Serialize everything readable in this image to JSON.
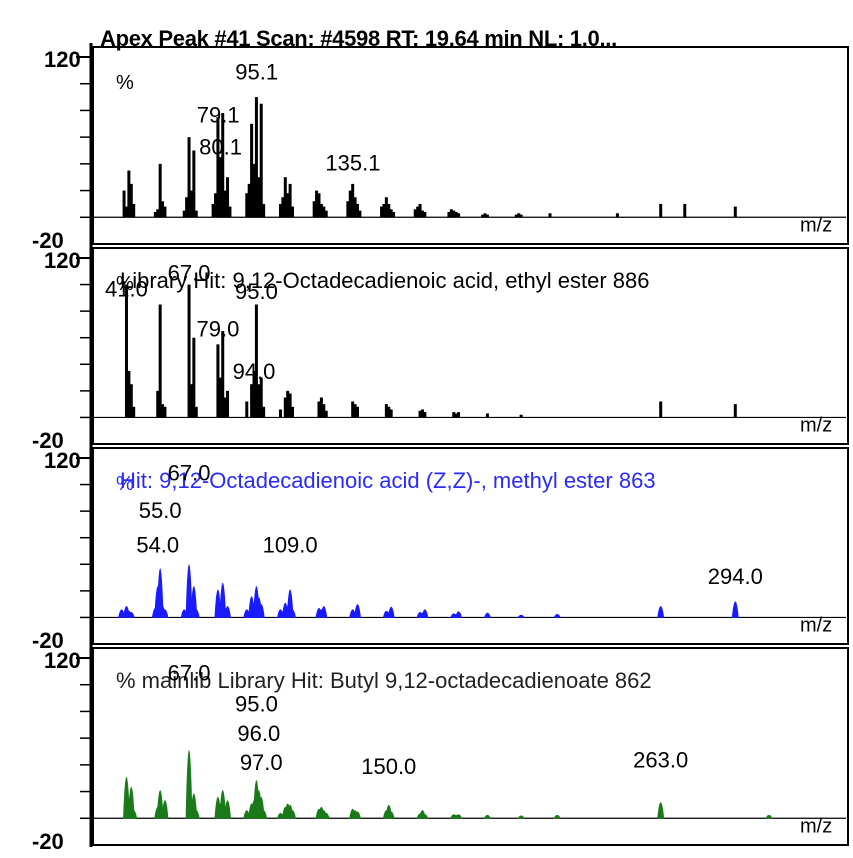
{
  "header": {
    "title": "Apex Peak #41 Scan: #4598   RT: 19.64 min NL: 1.0..."
  },
  "chart_data": [
    {
      "type": "bar",
      "panel_label": "",
      "y_unit_label": "%",
      "xlabel": "m/z",
      "ylim": [
        -20,
        120
      ],
      "y_ticks": [
        "120",
        "-20"
      ],
      "color": "#000000",
      "x": [
        40,
        41,
        42,
        43,
        44,
        53,
        54,
        55,
        56,
        57,
        65,
        66,
        67,
        68,
        69,
        70,
        77,
        78,
        79,
        80,
        81,
        82,
        83,
        84,
        91,
        92,
        93,
        94,
        95,
        96,
        97,
        98,
        105,
        106,
        107,
        108,
        109,
        110,
        119,
        120,
        121,
        122,
        123,
        124,
        133,
        134,
        135,
        136,
        137,
        138,
        147,
        148,
        149,
        150,
        151,
        152,
        161,
        162,
        163,
        164,
        165,
        175,
        176,
        177,
        178,
        179,
        189,
        190,
        191,
        203,
        204,
        205,
        217,
        245,
        263,
        273,
        294
      ],
      "values": [
        20,
        8,
        35,
        25,
        10,
        4,
        6,
        40,
        12,
        8,
        5,
        15,
        60,
        20,
        50,
        5,
        10,
        18,
        75,
        45,
        78,
        20,
        30,
        8,
        18,
        25,
        70,
        40,
        90,
        30,
        85,
        10,
        10,
        15,
        30,
        18,
        25,
        8,
        12,
        20,
        18,
        10,
        8,
        5,
        12,
        20,
        25,
        15,
        10,
        5,
        8,
        10,
        15,
        10,
        6,
        4,
        6,
        8,
        10,
        5,
        4,
        4,
        6,
        5,
        4,
        3,
        2,
        3,
        2,
        2,
        3,
        2,
        3,
        3,
        10,
        10,
        8
      ],
      "peak_labels": [
        {
          "x": 95.1,
          "y": 100,
          "text": "95.1"
        },
        {
          "x": 79.1,
          "y": 68,
          "text": "79.1"
        },
        {
          "x": 80.1,
          "y": 44,
          "text": "80.1"
        },
        {
          "x": 135.1,
          "y": 32,
          "text": "135.1"
        }
      ]
    },
    {
      "type": "bar",
      "panel_label": "Library Hit: 9,12-Octadecadienoic acid, ethyl ester 886",
      "y_unit_label": "%",
      "xlabel": "m/z",
      "ylim": [
        -20,
        120
      ],
      "y_ticks": [
        "120",
        "-20"
      ],
      "color": "#000000",
      "text_color": "#000000",
      "x": [
        41,
        42,
        43,
        44,
        54,
        55,
        56,
        57,
        67,
        68,
        69,
        70,
        79,
        80,
        81,
        82,
        83,
        91,
        93,
        94,
        95,
        96,
        97,
        98,
        105,
        107,
        108,
        109,
        110,
        121,
        122,
        123,
        124,
        135,
        136,
        137,
        149,
        150,
        151,
        163,
        164,
        165,
        177,
        178,
        179,
        191,
        205,
        263,
        294
      ],
      "values": [
        100,
        35,
        25,
        8,
        20,
        85,
        10,
        8,
        100,
        25,
        60,
        8,
        55,
        30,
        65,
        15,
        20,
        12,
        25,
        35,
        85,
        25,
        30,
        8,
        6,
        15,
        20,
        18,
        8,
        12,
        15,
        10,
        5,
        12,
        10,
        8,
        10,
        8,
        6,
        5,
        6,
        4,
        4,
        3,
        4,
        3,
        2,
        12,
        10
      ],
      "peak_labels": [
        {
          "x": 67.0,
          "y": 100,
          "text": "67.0"
        },
        {
          "x": 41.0,
          "y": 88,
          "text": "41.0"
        },
        {
          "x": 95.0,
          "y": 86,
          "text": "95.0"
        },
        {
          "x": 79.0,
          "y": 58,
          "text": "79.0"
        },
        {
          "x": 94.0,
          "y": 26,
          "text": "94.0"
        }
      ]
    },
    {
      "type": "area",
      "panel_label": "Hit: 9,12-Octadecadienoic acid (Z,Z)-, methyl ester 863",
      "y_unit_label": "%",
      "xlabel": "m/z",
      "ylim": [
        -20,
        120
      ],
      "y_ticks": [
        "120",
        "-20"
      ],
      "color": "#1a1aff",
      "text_color": "#2a2aff",
      "x": [
        39,
        41,
        42,
        43,
        53,
        54,
        55,
        56,
        57,
        65,
        67,
        68,
        69,
        70,
        79,
        80,
        81,
        82,
        83,
        91,
        93,
        94,
        95,
        96,
        97,
        105,
        107,
        108,
        109,
        110,
        121,
        122,
        123,
        135,
        136,
        137,
        149,
        150,
        151,
        163,
        164,
        165,
        177,
        178,
        179,
        191,
        205,
        220,
        263,
        294
      ],
      "values": [
        10,
        15,
        8,
        6,
        12,
        45,
        72,
        15,
        10,
        10,
        78,
        25,
        45,
        10,
        40,
        20,
        50,
        12,
        15,
        10,
        30,
        20,
        45,
        28,
        18,
        10,
        20,
        15,
        40,
        10,
        12,
        10,
        15,
        10,
        6,
        18,
        8,
        6,
        14,
        6,
        5,
        10,
        4,
        3,
        7,
        5,
        2,
        3,
        15,
        22
      ],
      "peak_labels": [
        {
          "x": 67.0,
          "y": 100,
          "text": "67.0"
        },
        {
          "x": 55.0,
          "y": 72,
          "text": "55.0"
        },
        {
          "x": 54.0,
          "y": 46,
          "text": "54.0"
        },
        {
          "x": 109.0,
          "y": 46,
          "text": "109.0"
        },
        {
          "x": 294.0,
          "y": 22,
          "text": "294.0"
        }
      ]
    },
    {
      "type": "area",
      "panel_label": "% mainlib Library Hit: Butyl 9,12-octadecadienoate 862",
      "y_unit_label": "",
      "xlabel": "m/z",
      "ylim": [
        -20,
        120
      ],
      "y_ticks": [
        "120",
        "-20"
      ],
      "color": "#1a7a1a",
      "text_color": "#222222",
      "x": [
        41,
        42,
        43,
        44,
        54,
        55,
        56,
        57,
        67,
        68,
        69,
        70,
        79,
        80,
        81,
        82,
        83,
        91,
        93,
        94,
        95,
        96,
        97,
        98,
        105,
        107,
        108,
        109,
        110,
        121,
        122,
        123,
        124,
        135,
        136,
        137,
        149,
        150,
        151,
        163,
        164,
        165,
        177,
        178,
        179,
        191,
        205,
        220,
        263,
        308
      ],
      "values": [
        60,
        20,
        45,
        10,
        15,
        40,
        10,
        25,
        100,
        20,
        35,
        10,
        30,
        20,
        40,
        15,
        25,
        10,
        20,
        25,
        55,
        40,
        30,
        10,
        6,
        15,
        20,
        18,
        10,
        12,
        15,
        10,
        6,
        12,
        10,
        8,
        10,
        18,
        8,
        5,
        10,
        4,
        4,
        3,
        4,
        3,
        2,
        3,
        22,
        3
      ],
      "peak_labels": [
        {
          "x": 67.0,
          "y": 100,
          "text": "67.0"
        },
        {
          "x": 95.0,
          "y": 77,
          "text": "95.0"
        },
        {
          "x": 96.0,
          "y": 55,
          "text": "96.0"
        },
        {
          "x": 97.0,
          "y": 33,
          "text": "97.0"
        },
        {
          "x": 150.0,
          "y": 30,
          "text": "150.0"
        },
        {
          "x": 263.0,
          "y": 35,
          "text": "263.0"
        }
      ]
    }
  ]
}
